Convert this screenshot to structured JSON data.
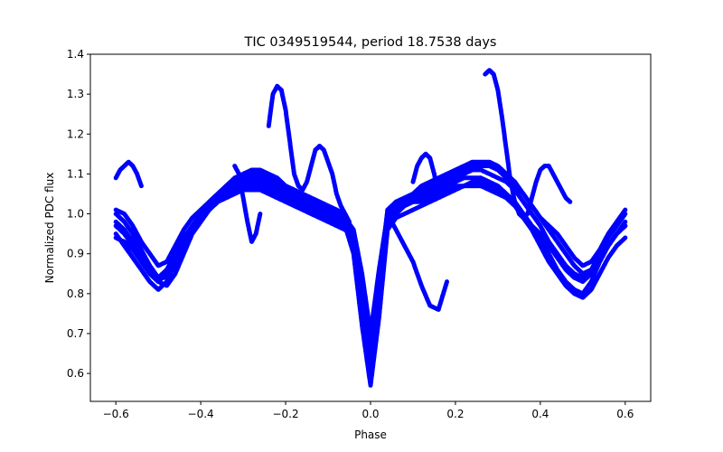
{
  "chart_data": {
    "type": "scatter",
    "title": "TIC 0349519544, period 18.7538 days",
    "xlabel": "Phase",
    "ylabel": "Normalized PDC flux",
    "xlim": [
      -0.66,
      0.66
    ],
    "ylim": [
      0.53,
      1.4
    ],
    "xticks": [
      -0.6,
      -0.4,
      -0.2,
      0.0,
      0.2,
      0.4,
      0.6
    ],
    "xtick_labels": [
      "−0.6",
      "−0.4",
      "−0.2",
      "0.0",
      "0.2",
      "0.4",
      "0.6"
    ],
    "yticks": [
      0.6,
      0.7,
      0.8,
      0.9,
      1.0,
      1.1,
      1.2,
      1.3,
      1.4
    ],
    "ytick_labels": [
      "0.6",
      "0.7",
      "0.8",
      "0.9",
      "1.0",
      "1.1",
      "1.2",
      "1.3",
      "1.4"
    ],
    "grid": false,
    "marker_color": "#0000ff",
    "series": [
      {
        "x": [
          -0.6,
          -0.58,
          -0.56,
          -0.54,
          -0.52,
          -0.5,
          -0.48,
          -0.46,
          -0.44,
          -0.42,
          -0.4,
          -0.38,
          -0.36,
          -0.34,
          -0.32,
          -0.3,
          -0.28,
          -0.26,
          -0.24,
          -0.22,
          -0.2,
          -0.18,
          -0.16,
          -0.14,
          -0.12,
          -0.1,
          -0.08,
          -0.06,
          -0.04,
          -0.02,
          0.0,
          0.02,
          0.04,
          0.06,
          0.08,
          0.1,
          0.12,
          0.14,
          0.16,
          0.18,
          0.2,
          0.22,
          0.24,
          0.26,
          0.28,
          0.3,
          0.32,
          0.34,
          0.36,
          0.38,
          0.4,
          0.42,
          0.44,
          0.46,
          0.48,
          0.5,
          0.52,
          0.54,
          0.56,
          0.58,
          0.6
        ],
        "y": [
          0.98,
          0.96,
          0.93,
          0.89,
          0.86,
          0.84,
          0.86,
          0.9,
          0.94,
          0.97,
          1.0,
          1.03,
          1.05,
          1.07,
          1.09,
          1.1,
          1.11,
          1.11,
          1.1,
          1.09,
          1.07,
          1.06,
          1.05,
          1.04,
          1.03,
          1.02,
          1.01,
          1.0,
          0.95,
          0.8,
          0.62,
          0.82,
          1.01,
          1.03,
          1.04,
          1.05,
          1.06,
          1.07,
          1.08,
          1.09,
          1.1,
          1.11,
          1.12,
          1.12,
          1.12,
          1.11,
          1.09,
          1.07,
          1.05,
          1.02,
          0.99,
          0.96,
          0.93,
          0.9,
          0.87,
          0.85,
          0.86,
          0.89,
          0.92,
          0.95,
          0.98
        ]
      },
      {
        "x": [
          -0.6,
          -0.58,
          -0.56,
          -0.54,
          -0.52,
          -0.5,
          -0.48,
          -0.46,
          -0.44,
          -0.42,
          -0.4,
          -0.38,
          -0.36,
          -0.34,
          -0.32,
          -0.3,
          -0.28,
          -0.26,
          -0.24,
          -0.22,
          -0.2,
          -0.18,
          -0.16,
          -0.14,
          -0.12,
          -0.1,
          -0.08,
          -0.06,
          -0.04,
          -0.02,
          0.0,
          0.02,
          0.04,
          0.06,
          0.08,
          0.1,
          0.12,
          0.14,
          0.16,
          0.18,
          0.2,
          0.22,
          0.24,
          0.26,
          0.28,
          0.3,
          0.32,
          0.34,
          0.36,
          0.38,
          0.4,
          0.42,
          0.44,
          0.46,
          0.48,
          0.5,
          0.52,
          0.54,
          0.56,
          0.58,
          0.6
        ],
        "y": [
          1.0,
          0.98,
          0.95,
          0.91,
          0.87,
          0.84,
          0.84,
          0.87,
          0.92,
          0.96,
          0.99,
          1.02,
          1.04,
          1.06,
          1.08,
          1.09,
          1.1,
          1.1,
          1.09,
          1.08,
          1.07,
          1.06,
          1.05,
          1.04,
          1.03,
          1.02,
          1.01,
          0.99,
          0.93,
          0.76,
          0.6,
          0.79,
          0.99,
          1.02,
          1.03,
          1.04,
          1.05,
          1.06,
          1.07,
          1.08,
          1.09,
          1.1,
          1.11,
          1.11,
          1.1,
          1.09,
          1.08,
          1.06,
          1.03,
          1.0,
          0.97,
          0.93,
          0.9,
          0.87,
          0.85,
          0.84,
          0.86,
          0.9,
          0.94,
          0.97,
          1.0
        ]
      },
      {
        "x": [
          -0.6,
          -0.58,
          -0.56,
          -0.54,
          -0.52,
          -0.5,
          -0.48,
          -0.46,
          -0.44,
          -0.42,
          -0.4,
          -0.38,
          -0.36,
          -0.34,
          -0.32,
          -0.3,
          -0.28,
          -0.26,
          -0.24,
          -0.22,
          -0.2,
          -0.18,
          -0.16,
          -0.14,
          -0.12,
          -0.1,
          -0.08,
          -0.06,
          -0.04,
          -0.02,
          0.0,
          0.02,
          0.04,
          0.06,
          0.08,
          0.1,
          0.12,
          0.14,
          0.16,
          0.18,
          0.2,
          0.22,
          0.24,
          0.26,
          0.28,
          0.3,
          0.32,
          0.34,
          0.36,
          0.38,
          0.4,
          0.42,
          0.44,
          0.46,
          0.48,
          0.5,
          0.52,
          0.54,
          0.56,
          0.58,
          0.6
        ],
        "y": [
          0.95,
          0.92,
          0.89,
          0.86,
          0.83,
          0.81,
          0.83,
          0.88,
          0.93,
          0.97,
          1.0,
          1.02,
          1.04,
          1.06,
          1.07,
          1.08,
          1.08,
          1.08,
          1.07,
          1.06,
          1.05,
          1.04,
          1.03,
          1.02,
          1.01,
          1.0,
          0.99,
          0.98,
          0.92,
          0.74,
          0.58,
          0.76,
          0.97,
          1.0,
          1.02,
          1.03,
          1.04,
          1.05,
          1.06,
          1.07,
          1.08,
          1.09,
          1.09,
          1.09,
          1.08,
          1.07,
          1.05,
          1.03,
          1.0,
          0.97,
          0.94,
          0.9,
          0.86,
          0.83,
          0.81,
          0.8,
          0.83,
          0.88,
          0.92,
          0.95,
          0.97
        ]
      },
      {
        "x": [
          -0.6,
          -0.58,
          -0.56,
          -0.54,
          -0.52,
          -0.5,
          -0.48,
          -0.46,
          -0.44,
          -0.42,
          -0.4,
          -0.38,
          -0.36,
          -0.34,
          -0.32,
          -0.3,
          -0.28,
          -0.26,
          -0.24,
          -0.22,
          -0.2,
          -0.18,
          -0.16,
          -0.14,
          -0.12,
          -0.1,
          -0.08,
          -0.06,
          -0.04,
          -0.02,
          0.0,
          0.02,
          0.04,
          0.06,
          0.08,
          0.1,
          0.12,
          0.14,
          0.16,
          0.18,
          0.2,
          0.22,
          0.24,
          0.26,
          0.28,
          0.3,
          0.32,
          0.34,
          0.36,
          0.38,
          0.4,
          0.42,
          0.44,
          0.46,
          0.48,
          0.5,
          0.52,
          0.54,
          0.56,
          0.58,
          0.6
        ],
        "y": [
          0.94,
          0.93,
          0.91,
          0.88,
          0.85,
          0.83,
          0.82,
          0.85,
          0.9,
          0.95,
          0.98,
          1.01,
          1.03,
          1.05,
          1.06,
          1.07,
          1.07,
          1.07,
          1.06,
          1.05,
          1.04,
          1.03,
          1.02,
          1.01,
          1.0,
          0.99,
          0.98,
          0.97,
          0.9,
          0.72,
          0.57,
          0.74,
          0.96,
          0.99,
          1.0,
          1.01,
          1.02,
          1.03,
          1.04,
          1.05,
          1.06,
          1.07,
          1.08,
          1.08,
          1.07,
          1.06,
          1.04,
          1.02,
          0.99,
          0.96,
          0.92,
          0.88,
          0.85,
          0.82,
          0.8,
          0.79,
          0.81,
          0.85,
          0.89,
          0.92,
          0.94
        ]
      },
      {
        "x": [
          -0.6,
          -0.58,
          -0.56,
          -0.54,
          -0.52,
          -0.5,
          -0.48,
          -0.46,
          -0.44,
          -0.42,
          -0.4,
          -0.38,
          -0.36,
          -0.34,
          -0.32,
          -0.3,
          -0.28,
          -0.26,
          -0.24,
          -0.22,
          -0.2,
          -0.18,
          -0.16,
          -0.14,
          -0.12,
          -0.1,
          -0.08,
          -0.06,
          -0.04,
          -0.02,
          0.0,
          0.02,
          0.04,
          0.06,
          0.08,
          0.1,
          0.12,
          0.14,
          0.16,
          0.18,
          0.2,
          0.22,
          0.24,
          0.26,
          0.28,
          0.3,
          0.32,
          0.34,
          0.36,
          0.38,
          0.4,
          0.42,
          0.44,
          0.46,
          0.48,
          0.5,
          0.52,
          0.54,
          0.56,
          0.58,
          0.6
        ],
        "y": [
          1.01,
          1.0,
          0.97,
          0.93,
          0.9,
          0.87,
          0.88,
          0.92,
          0.96,
          0.99,
          1.01,
          1.03,
          1.05,
          1.07,
          1.08,
          1.09,
          1.09,
          1.09,
          1.08,
          1.07,
          1.06,
          1.05,
          1.04,
          1.03,
          1.02,
          1.01,
          1.0,
          0.99,
          0.96,
          0.85,
          0.7,
          0.86,
          1.0,
          1.03,
          1.04,
          1.05,
          1.07,
          1.08,
          1.09,
          1.1,
          1.11,
          1.12,
          1.13,
          1.13,
          1.13,
          1.12,
          1.1,
          1.08,
          1.05,
          1.02,
          0.99,
          0.97,
          0.95,
          0.92,
          0.89,
          0.87,
          0.88,
          0.91,
          0.95,
          0.98,
          1.01
        ]
      },
      {
        "x": [
          -0.6,
          -0.58,
          -0.56,
          -0.54,
          -0.52,
          -0.5,
          -0.48,
          -0.46,
          -0.44,
          -0.42,
          -0.4,
          -0.38,
          -0.36,
          -0.34,
          -0.32,
          -0.3,
          -0.28,
          -0.26,
          -0.24,
          -0.22,
          -0.2,
          -0.18,
          -0.16,
          -0.14,
          -0.12,
          -0.1,
          -0.08,
          -0.06,
          -0.04,
          -0.02,
          0.0,
          0.02,
          0.04,
          0.06,
          0.08,
          0.1,
          0.12,
          0.14,
          0.16,
          0.18,
          0.2,
          0.22,
          0.24,
          0.26,
          0.28,
          0.3,
          0.32,
          0.34,
          0.36,
          0.38,
          0.4,
          0.42,
          0.44,
          0.46,
          0.48,
          0.5,
          0.52,
          0.54,
          0.56,
          0.58,
          0.6
        ],
        "y": [
          0.97,
          0.95,
          0.92,
          0.88,
          0.85,
          0.83,
          0.85,
          0.89,
          0.93,
          0.96,
          0.99,
          1.01,
          1.03,
          1.04,
          1.05,
          1.06,
          1.06,
          1.06,
          1.05,
          1.04,
          1.03,
          1.02,
          1.01,
          1.0,
          0.99,
          0.98,
          0.97,
          0.96,
          0.94,
          0.82,
          0.66,
          0.8,
          0.98,
          1.01,
          1.02,
          1.03,
          1.03,
          1.04,
          1.05,
          1.06,
          1.07,
          1.07,
          1.07,
          1.07,
          1.06,
          1.05,
          1.04,
          1.02,
          1.0,
          0.97,
          0.95,
          0.92,
          0.89,
          0.86,
          0.84,
          0.83,
          0.85,
          0.88,
          0.92,
          0.95,
          0.97
        ]
      },
      {
        "x": [
          -0.6,
          -0.59,
          -0.58,
          -0.57,
          -0.56,
          -0.55,
          -0.54
        ],
        "y": [
          1.09,
          1.11,
          1.12,
          1.13,
          1.12,
          1.1,
          1.07
        ]
      },
      {
        "x": [
          -0.24,
          -0.23,
          -0.22,
          -0.21,
          -0.2,
          -0.19,
          -0.18,
          -0.17,
          -0.16,
          -0.15,
          -0.14,
          -0.13,
          -0.12,
          -0.11,
          -0.1,
          -0.09,
          -0.08,
          -0.07,
          -0.06,
          -0.05
        ],
        "y": [
          1.22,
          1.3,
          1.32,
          1.31,
          1.26,
          1.18,
          1.1,
          1.07,
          1.06,
          1.08,
          1.12,
          1.16,
          1.17,
          1.16,
          1.13,
          1.1,
          1.05,
          1.02,
          1.0,
          0.98
        ]
      },
      {
        "x": [
          0.27,
          0.28,
          0.29,
          0.3,
          0.31,
          0.32,
          0.33,
          0.34,
          0.35,
          0.36,
          0.37,
          0.38,
          0.39,
          0.4,
          0.41,
          0.42,
          0.43,
          0.44,
          0.45,
          0.46,
          0.47
        ],
        "y": [
          1.35,
          1.36,
          1.35,
          1.31,
          1.24,
          1.16,
          1.08,
          1.03,
          1.0,
          0.99,
          1.0,
          1.04,
          1.08,
          1.11,
          1.12,
          1.12,
          1.1,
          1.08,
          1.06,
          1.04,
          1.03
        ]
      },
      {
        "x": [
          0.04,
          0.06,
          0.08,
          0.1,
          0.12,
          0.14,
          0.16,
          0.18
        ],
        "y": [
          1.0,
          0.96,
          0.92,
          0.88,
          0.82,
          0.77,
          0.76,
          0.83
        ]
      },
      {
        "x": [
          0.1,
          0.11,
          0.12,
          0.13,
          0.14,
          0.15,
          0.16
        ],
        "y": [
          1.08,
          1.12,
          1.14,
          1.15,
          1.14,
          1.1,
          1.05
        ]
      },
      {
        "x": [
          -0.32,
          -0.31,
          -0.3,
          -0.29,
          -0.28,
          -0.27,
          -0.26
        ],
        "y": [
          1.12,
          1.1,
          1.04,
          0.98,
          0.93,
          0.95,
          1.0
        ]
      }
    ]
  }
}
